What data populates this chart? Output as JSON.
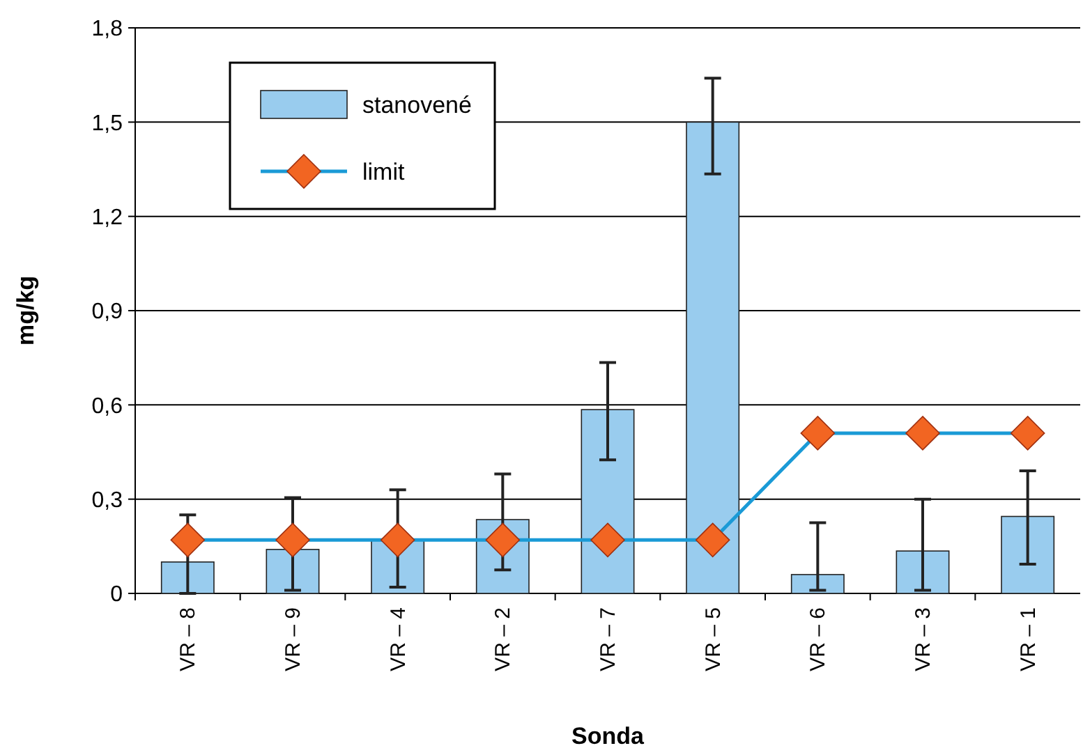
{
  "chart_data": {
    "type": "bar",
    "xlabel": "Sonda",
    "ylabel": "mg/kg",
    "categories": [
      "VR – 8",
      "VR – 9",
      "VR – 4",
      "VR – 2",
      "VR – 7",
      "VR – 5",
      "VR – 6",
      "VR – 3",
      "VR – 1"
    ],
    "series": [
      {
        "name": "stanovené",
        "color": "#99ccee",
        "values": [
          0.1,
          0.14,
          0.17,
          0.235,
          0.585,
          1.5,
          0.06,
          0.135,
          0.245
        ],
        "errors": [
          [
            0,
            0.25
          ],
          [
            0.01,
            0.305
          ],
          [
            0.02,
            0.33
          ],
          [
            0.075,
            0.38
          ],
          [
            0.425,
            0.735
          ],
          [
            1.335,
            1.64
          ],
          [
            0.01,
            0.225
          ],
          [
            0.01,
            0.3
          ],
          [
            0.093,
            0.39
          ]
        ]
      },
      {
        "name": "limit",
        "type": "line",
        "color": "#1a9ad6",
        "marker": "diamond",
        "values": [
          0.17,
          0.17,
          0.17,
          0.17,
          0.17,
          0.17,
          0.51,
          0.51,
          0.51
        ]
      }
    ],
    "ylim": [
      0,
      1.8
    ],
    "yticks": [
      {
        "value": 0,
        "label": "0"
      },
      {
        "value": 0.3,
        "label": "0,3"
      },
      {
        "value": 0.6,
        "label": "0,6"
      },
      {
        "value": 0.9,
        "label": "0,9"
      },
      {
        "value": 1.2,
        "label": "1,2"
      },
      {
        "value": 1.5,
        "label": "1,5"
      },
      {
        "value": 1.8,
        "label": "1,8"
      }
    ],
    "grid": "y",
    "legend": "top left"
  }
}
